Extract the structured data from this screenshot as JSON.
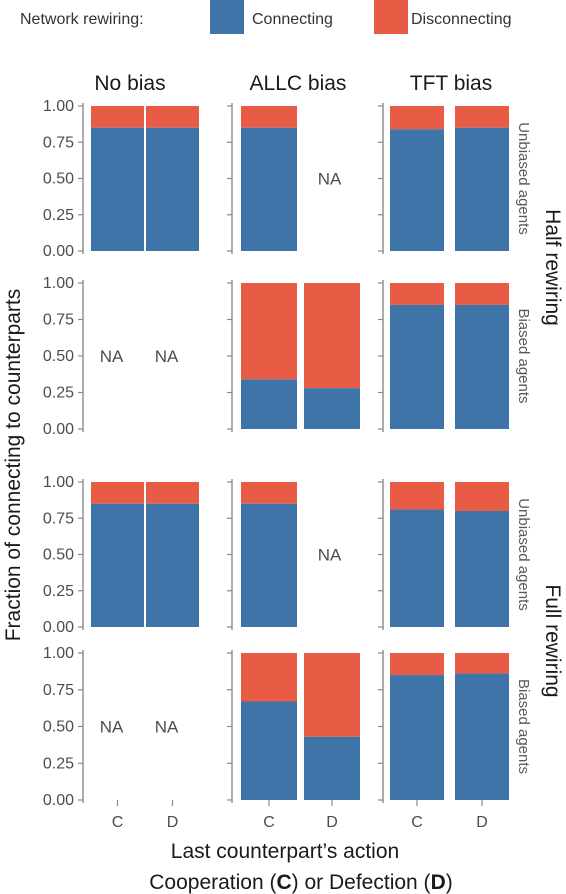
{
  "legend": {
    "title": "Network rewiring:",
    "items": [
      {
        "label": "Connecting",
        "color": "#3f74a8"
      },
      {
        "label": "Disconnecting",
        "color": "#e85c46"
      }
    ]
  },
  "chart_data": {
    "type": "bar",
    "stacked": true,
    "facet_columns": [
      "No bias",
      "ALLC bias",
      "TFT bias"
    ],
    "facet_groups": [
      {
        "label": "Half rewiring",
        "rows": [
          "Unbiased agents",
          "Biased agents"
        ]
      },
      {
        "label": "Full rewiring",
        "rows": [
          "Unbiased agents",
          "Biased agents"
        ]
      }
    ],
    "categories": [
      "C",
      "D"
    ],
    "ylabel": "Fraction of connecting to counterparts",
    "xlabel_line1": "Last counterpart’s action",
    "xlabel_line2_parts": [
      "Cooperation (",
      "C",
      ") or Defection (",
      "D",
      ")"
    ],
    "ylim": [
      0,
      1
    ],
    "yticks": [
      "0.00",
      "0.25",
      "0.50",
      "0.75",
      "1.00"
    ],
    "na_label": "NA",
    "series": [
      {
        "name": "Connecting",
        "color": "#3f74a8"
      },
      {
        "name": "Disconnecting",
        "color": "#e85c46"
      }
    ],
    "panels": [
      {
        "group": "Half rewiring",
        "row": "Unbiased agents",
        "column": "No bias",
        "connecting": [
          0.85,
          0.85
        ]
      },
      {
        "group": "Half rewiring",
        "row": "Unbiased agents",
        "column": "ALLC bias",
        "connecting": [
          0.85,
          null
        ]
      },
      {
        "group": "Half rewiring",
        "row": "Unbiased agents",
        "column": "TFT bias",
        "connecting": [
          0.84,
          0.85
        ]
      },
      {
        "group": "Half rewiring",
        "row": "Biased agents",
        "column": "No bias",
        "connecting": [
          null,
          null
        ]
      },
      {
        "group": "Half rewiring",
        "row": "Biased agents",
        "column": "ALLC bias",
        "connecting": [
          0.34,
          0.28
        ]
      },
      {
        "group": "Half rewiring",
        "row": "Biased agents",
        "column": "TFT bias",
        "connecting": [
          0.85,
          0.85
        ]
      },
      {
        "group": "Full rewiring",
        "row": "Unbiased agents",
        "column": "No bias",
        "connecting": [
          0.85,
          0.85
        ]
      },
      {
        "group": "Full rewiring",
        "row": "Unbiased agents",
        "column": "ALLC bias",
        "connecting": [
          0.85,
          null
        ]
      },
      {
        "group": "Full rewiring",
        "row": "Unbiased agents",
        "column": "TFT bias",
        "connecting": [
          0.81,
          0.8
        ]
      },
      {
        "group": "Full rewiring",
        "row": "Biased agents",
        "column": "No bias",
        "connecting": [
          null,
          null
        ]
      },
      {
        "group": "Full rewiring",
        "row": "Biased agents",
        "column": "ALLC bias",
        "connecting": [
          0.67,
          0.43
        ]
      },
      {
        "group": "Full rewiring",
        "row": "Biased agents",
        "column": "TFT bias",
        "connecting": [
          0.85,
          0.86
        ]
      }
    ]
  }
}
